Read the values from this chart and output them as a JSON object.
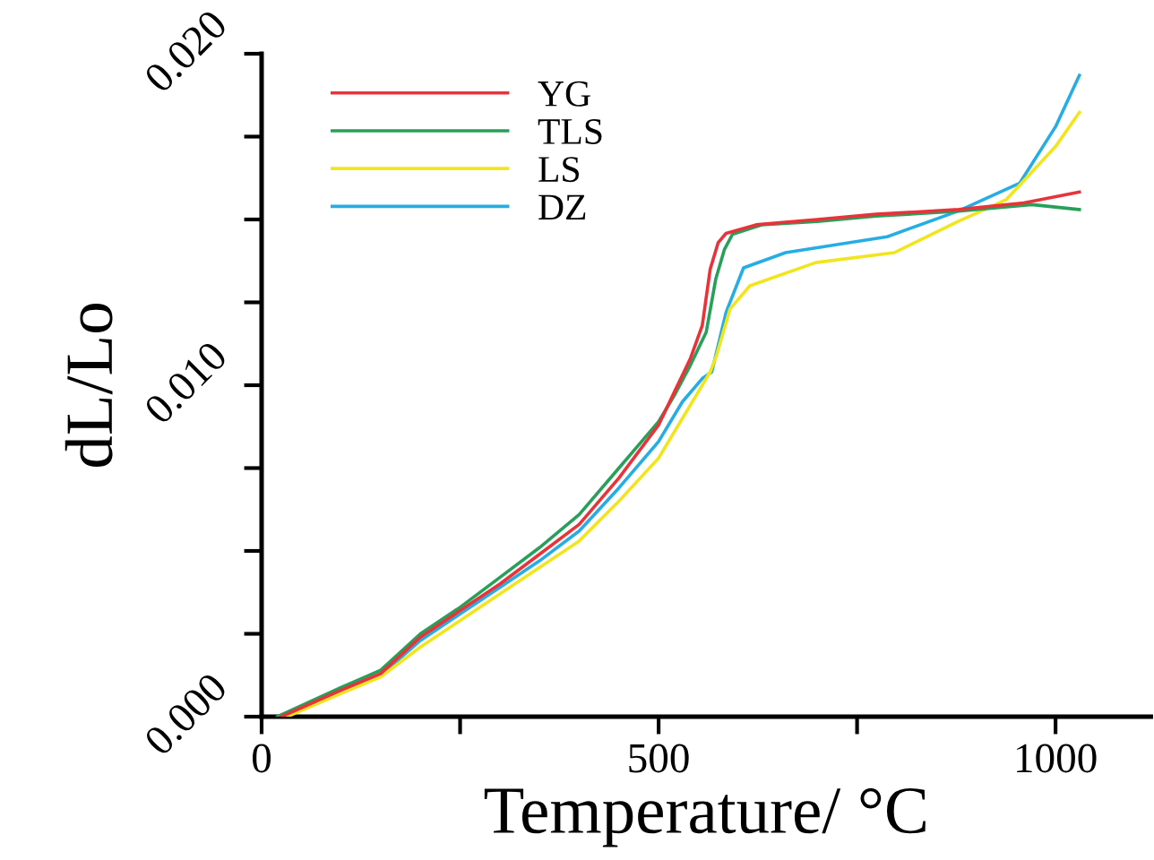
{
  "chart_data": {
    "type": "line",
    "xlabel": "Temperature/ °C",
    "ylabel": "dL/Lo",
    "xlim": [
      0,
      1120
    ],
    "ylim": [
      0,
      0.02
    ],
    "xticks": [
      0,
      {
        "value": 250,
        "label": null
      },
      500,
      {
        "value": 750,
        "label": null
      },
      1000
    ],
    "yticks": [
      {
        "value": 0,
        "label": "0.000"
      },
      {
        "value": 0.0025,
        "label": null
      },
      {
        "value": 0.005,
        "label": null
      },
      {
        "value": 0.0075,
        "label": null
      },
      {
        "value": 0.01,
        "label": "0.010"
      },
      {
        "value": 0.0125,
        "label": null
      },
      {
        "value": 0.015,
        "label": null
      },
      {
        "value": 0.0175,
        "label": null
      },
      {
        "value": 0.02,
        "label": "0.020"
      }
    ],
    "grid": false,
    "legend": "top left",
    "marker": "none",
    "line_style": "solid",
    "series": [
      {
        "name": "YG",
        "color": "#e8333a",
        "x": [
          25,
          100,
          150,
          200,
          250,
          300,
          350,
          400,
          450,
          500,
          520,
          540,
          555,
          565,
          575,
          585,
          623,
          700,
          774,
          878,
          960,
          1030
        ],
        "values": [
          0,
          0.0008,
          0.0013,
          0.0024,
          0.0032,
          0.004,
          0.0049,
          0.0058,
          0.0072,
          0.0088,
          0.0098,
          0.0108,
          0.0118,
          0.0135,
          0.0143,
          0.01458,
          0.01484,
          0.015,
          0.01516,
          0.0153,
          0.0155,
          0.01583
        ]
      },
      {
        "name": "TLS",
        "color": "#27a05a",
        "x": [
          20,
          100,
          150,
          200,
          250,
          300,
          350,
          400,
          450,
          500,
          520,
          540,
          560,
          572,
          583,
          593,
          630,
          700,
          774,
          878,
          970,
          1030
        ],
        "values": [
          0,
          0.00088,
          0.0014,
          0.0025,
          0.0033,
          0.0042,
          0.0051,
          0.0061,
          0.0075,
          0.0089,
          0.0097,
          0.0106,
          0.0116,
          0.0132,
          0.0141,
          0.01455,
          0.01484,
          0.01494,
          0.0151,
          0.01525,
          0.01545,
          0.0153
        ]
      },
      {
        "name": "LS",
        "color": "#f2e51e",
        "x": [
          32,
          100,
          150,
          200,
          250,
          300,
          350,
          400,
          450,
          500,
          530,
          555,
          565,
          573,
          590,
          615,
          698,
          797,
          878,
          938,
          1000,
          1030
        ],
        "values": [
          0,
          0.0007,
          0.0012,
          0.0021,
          0.0029,
          0.0037,
          0.0045,
          0.0053,
          0.0065,
          0.0078,
          0.009,
          0.01,
          0.0104,
          0.0109,
          0.0123,
          0.013,
          0.0137,
          0.014,
          0.01495,
          0.0156,
          0.0172,
          0.01823
        ]
      },
      {
        "name": "DZ",
        "color": "#26aee4",
        "x": [
          29,
          100,
          150,
          200,
          250,
          300,
          350,
          400,
          450,
          500,
          530,
          555,
          567,
          585,
          607,
          660,
          788,
          878,
          955,
          1000,
          1030
        ],
        "values": [
          0,
          0.00074,
          0.00125,
          0.0023,
          0.0031,
          0.0039,
          0.0047,
          0.0056,
          0.0069,
          0.0083,
          0.0095,
          0.0102,
          0.0104,
          0.0122,
          0.01354,
          0.014,
          0.01448,
          0.01526,
          0.0161,
          0.0178,
          0.01935
        ]
      }
    ]
  }
}
